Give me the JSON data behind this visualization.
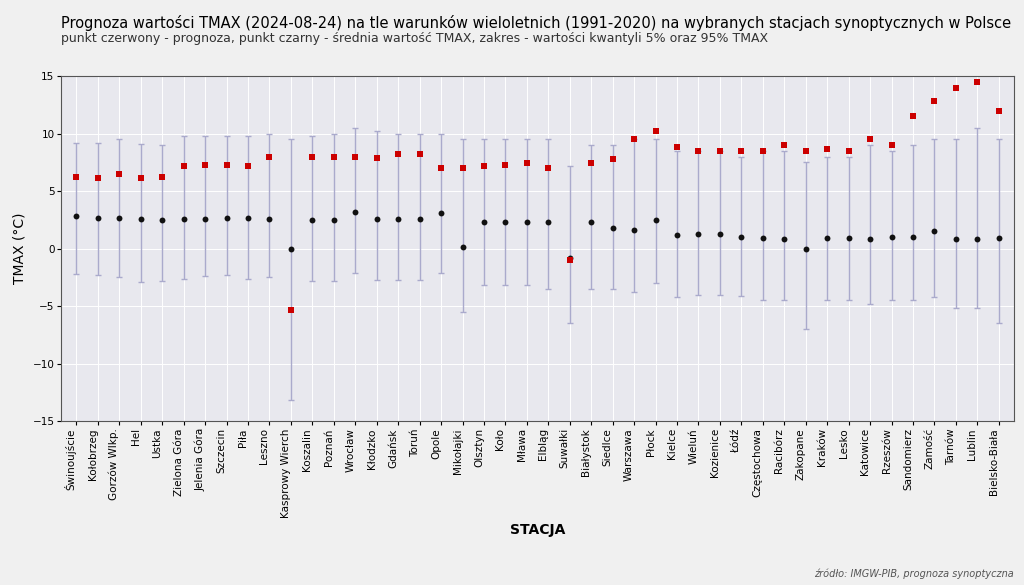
{
  "title": "Prognoza wartości TMAX (2024-08-24) na tle warunków wieloletnich (1991-2020) na wybranych stacjach synoptycznych w Polsce",
  "subtitle": "punkt czerwony - prognoza, punkt czarny - średnia wartość TMAX, zakres - wartości kwantyli 5% oraz 95% TMAX",
  "xlabel": "STACJA",
  "ylabel": "TMAX (°C)",
  "source": "źródło: IMGW-PIB, prognoza synoptyczna",
  "bg_color": "#f0f0f0",
  "plot_bg_color": "#e8e8ee",
  "error_color": "#aaaacc",
  "forecast_color": "#cc0000",
  "mean_color": "#111111",
  "stations": [
    "Świnoujście",
    "Kołobrzeg",
    "Gorzów Wlkp.",
    "Hel",
    "Ustka",
    "Zielona Góra",
    "Jelenia Góra",
    "Szczecin",
    "Piła",
    "Leszno",
    "Kasprowy Wierch",
    "Koszalin",
    "Poznań",
    "Wrocław",
    "Kłodzko",
    "Gdańsk",
    "Toruń",
    "Opole",
    "Mikołajki",
    "Olsztyn",
    "Koło",
    "Mława",
    "Elbląg",
    "Suwałki",
    "Białystok",
    "Siedlce",
    "Warszawa",
    "Płock",
    "Kielce",
    "Wieluń",
    "Kozienice",
    "Łódź",
    "Częstochowa",
    "Racibórz",
    "Zakopane",
    "Kraków",
    "Lesko",
    "Katowice",
    "Rzeszów",
    "Sandomierz",
    "Zamość",
    "Tarnów",
    "Lublin",
    "Bielsko-Biała"
  ],
  "forecast": [
    6.2,
    6.1,
    6.5,
    6.1,
    6.2,
    7.2,
    7.3,
    7.3,
    7.2,
    8.0,
    -5.3,
    8.0,
    8.0,
    8.0,
    7.9,
    8.2,
    8.2,
    7.0,
    7.0,
    7.2,
    7.3,
    7.4,
    7.0,
    -1.0,
    7.4,
    7.8,
    9.5,
    10.2,
    8.8,
    8.5,
    8.5,
    8.5,
    8.5,
    9.0,
    8.5,
    8.7,
    8.5,
    9.5,
    9.0,
    11.5,
    12.8,
    14.0,
    14.5,
    12.0
  ],
  "mean": [
    2.8,
    2.7,
    2.7,
    2.6,
    2.5,
    2.6,
    2.6,
    2.7,
    2.7,
    2.6,
    0.0,
    2.5,
    2.5,
    3.2,
    2.6,
    2.6,
    2.6,
    3.1,
    0.1,
    2.3,
    2.3,
    2.3,
    2.3,
    -0.8,
    2.3,
    1.8,
    1.6,
    2.5,
    1.2,
    1.3,
    1.3,
    1.0,
    0.9,
    0.8,
    0.0,
    0.9,
    0.9,
    0.8,
    1.0,
    1.0,
    1.5,
    0.8,
    0.8,
    0.9
  ],
  "q05": [
    -2.2,
    -2.3,
    -2.5,
    -2.9,
    -2.8,
    -2.6,
    -2.4,
    -2.3,
    -2.6,
    -2.5,
    -13.2,
    -2.8,
    -2.8,
    -2.1,
    -2.7,
    -2.7,
    -2.7,
    -2.1,
    -5.5,
    -3.2,
    -3.2,
    -3.2,
    -3.5,
    -6.5,
    -3.5,
    -3.5,
    -3.8,
    -3.0,
    -4.2,
    -4.0,
    -4.0,
    -4.1,
    -4.5,
    -4.5,
    -7.0,
    -4.5,
    -4.5,
    -4.8,
    -4.5,
    -4.5,
    -4.2,
    -5.2,
    -5.2,
    -6.5
  ],
  "q95": [
    9.2,
    9.2,
    9.5,
    9.1,
    9.0,
    9.8,
    9.8,
    9.8,
    9.8,
    10.0,
    9.5,
    9.8,
    10.0,
    10.5,
    10.2,
    10.0,
    10.0,
    10.0,
    9.5,
    9.5,
    9.5,
    9.5,
    9.5,
    7.2,
    9.0,
    9.0,
    9.5,
    9.5,
    8.5,
    8.5,
    8.5,
    8.0,
    8.5,
    8.5,
    7.5,
    8.0,
    8.0,
    9.0,
    8.5,
    9.0,
    9.5,
    9.5,
    10.5,
    9.5
  ],
  "ylim": [
    -15,
    15
  ],
  "yticks": [
    -15,
    -10,
    -5,
    0,
    5,
    10,
    15
  ],
  "title_fontsize": 10.5,
  "subtitle_fontsize": 9,
  "axis_label_fontsize": 10,
  "tick_fontsize": 7.5
}
